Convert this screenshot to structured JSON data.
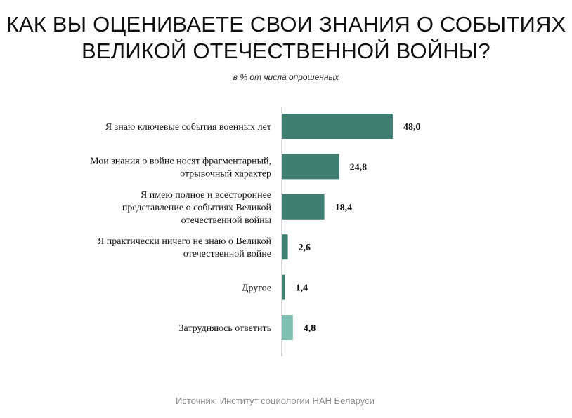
{
  "title": {
    "line1": "КАК ВЫ ОЦЕНИВАЕТЕ СВОИ ЗНАНИЯ О СОБЫТИЯХ",
    "line2": "ВЕЛИКОЙ ОТЕЧЕСТВЕННОЙ ВОЙНЫ?"
  },
  "subtitle": "в % от числа опрошенных",
  "source": "Источник: Институт социологии НАН Беларуси",
  "colors": {
    "bar_primary": "#3f7f72",
    "bar_light": "#7fbfb2",
    "axis": "#b0b0b0"
  },
  "chart_data": {
    "type": "bar",
    "orientation": "horizontal",
    "title": "КАК ВЫ ОЦЕНИВАЕТЕ СВОИ ЗНАНИЯ О СОБЫТИЯХ ВЕЛИКОЙ ОТЕЧЕСТВЕННОЙ ВОЙНЫ?",
    "subtitle": "в % от числа опрошенных",
    "xlim": [
      0,
      60
    ],
    "grid": false,
    "categories": [
      [
        "Я знаю ключевые события военных лет"
      ],
      [
        "Мои знания о войне носят фрагментарный,",
        "отрывочный характер"
      ],
      [
        "Я имею полное и всестороннее",
        "представление о событиях Великой",
        "отечественной войны"
      ],
      [
        "Я практически ничего не знаю о Великой",
        "отечественной войне"
      ],
      [
        "Другое"
      ],
      [
        "Затрудняюсь ответить"
      ]
    ],
    "values": [
      48.0,
      24.8,
      18.4,
      2.6,
      1.4,
      4.8
    ],
    "value_labels": [
      "48,0",
      "24,8",
      "18,4",
      "2,6",
      "1,4",
      "4,8"
    ],
    "bar_colors": [
      "#3f7f72",
      "#3f7f72",
      "#3f7f72",
      "#3f7f72",
      "#3f7f72",
      "#7fbfb2"
    ]
  }
}
